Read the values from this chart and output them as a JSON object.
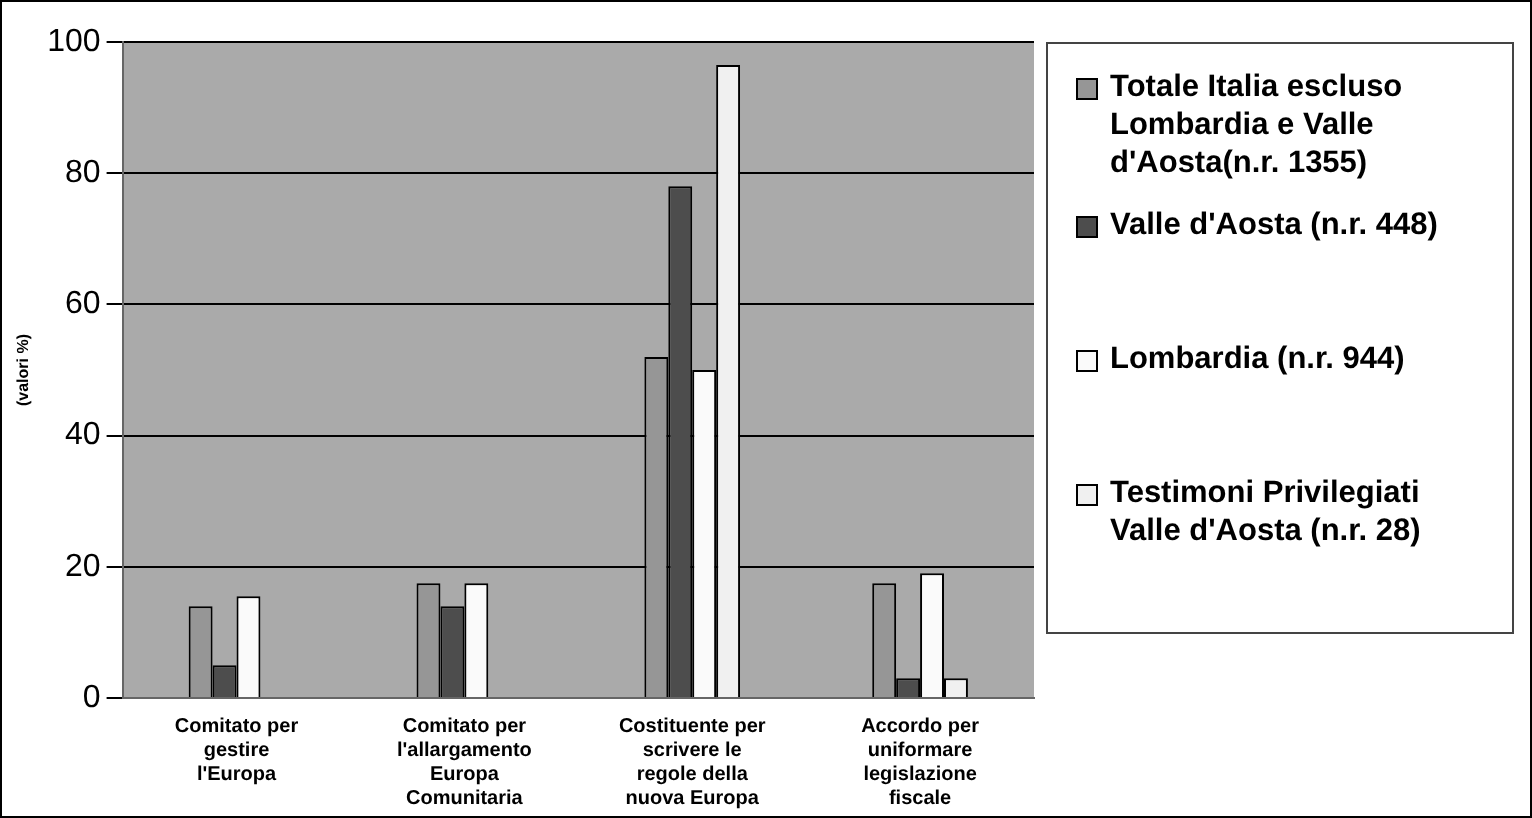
{
  "chart_data": {
    "type": "bar",
    "ylabel": "(valori %)",
    "categories": [
      "Comitato per gestire l'Europa",
      "Comitato per l'allargamento Europa Comunitaria",
      "Costituente per scrivere le regole della nuova Europa",
      "Accordo per uniformare legislazione fiscale"
    ],
    "series": [
      {
        "name": "Totale Italia escluso Lombardia e Valle d'Aosta(n.r. 1355)",
        "color": "#969696",
        "values": [
          14,
          17.5,
          52,
          17.5
        ]
      },
      {
        "name": "Valle d'Aosta (n.r. 448)",
        "color": "#4d4d4d",
        "values": [
          5,
          14,
          78,
          3
        ]
      },
      {
        "name": "Lombardia (n.r. 944)",
        "color": "#fafafa",
        "values": [
          15.5,
          17.5,
          50,
          19
        ]
      },
      {
        "name": "Testimoni Privilegiati Valle d'Aosta (n.r. 28)",
        "color": "#f0f0f0",
        "values": [
          null,
          null,
          96.5,
          3
        ]
      }
    ],
    "ylim": [
      0,
      100
    ],
    "yticks": [
      0,
      20,
      40,
      60,
      80,
      100
    ],
    "grid": "y",
    "legend": "right"
  }
}
